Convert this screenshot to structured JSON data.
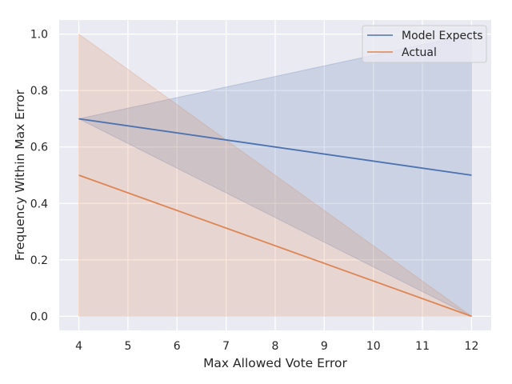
{
  "chart_data": {
    "type": "line",
    "xlabel": "Max Allowed Vote Error",
    "ylabel": "Frequency Within Max Error",
    "xlim": [
      3.6,
      12.4
    ],
    "ylim": [
      -0.05,
      1.05
    ],
    "xticks": [
      4,
      5,
      6,
      7,
      8,
      9,
      10,
      11,
      12
    ],
    "xtick_labels": [
      "4",
      "5",
      "6",
      "7",
      "8",
      "9",
      "10",
      "11",
      "12"
    ],
    "yticks": [
      0.0,
      0.2,
      0.4,
      0.6,
      0.8,
      1.0
    ],
    "ytick_labels": [
      "0.0",
      "0.2",
      "0.4",
      "0.6",
      "0.8",
      "1.0"
    ],
    "grid": true,
    "legend_position": "top-right",
    "series": [
      {
        "name": "Model Expects",
        "color": "#4c72b0",
        "x": [
          4,
          12
        ],
        "y": [
          0.7,
          0.5
        ],
        "band_upper": [
          0.7,
          1.0
        ],
        "band_lower": [
          0.7,
          0.0
        ]
      },
      {
        "name": "Actual",
        "color": "#dd8452",
        "x": [
          4,
          12
        ],
        "y": [
          0.5,
          0.0
        ],
        "band_upper": [
          1.0,
          0.0
        ],
        "band_lower": [
          0.0,
          0.0
        ]
      }
    ]
  }
}
